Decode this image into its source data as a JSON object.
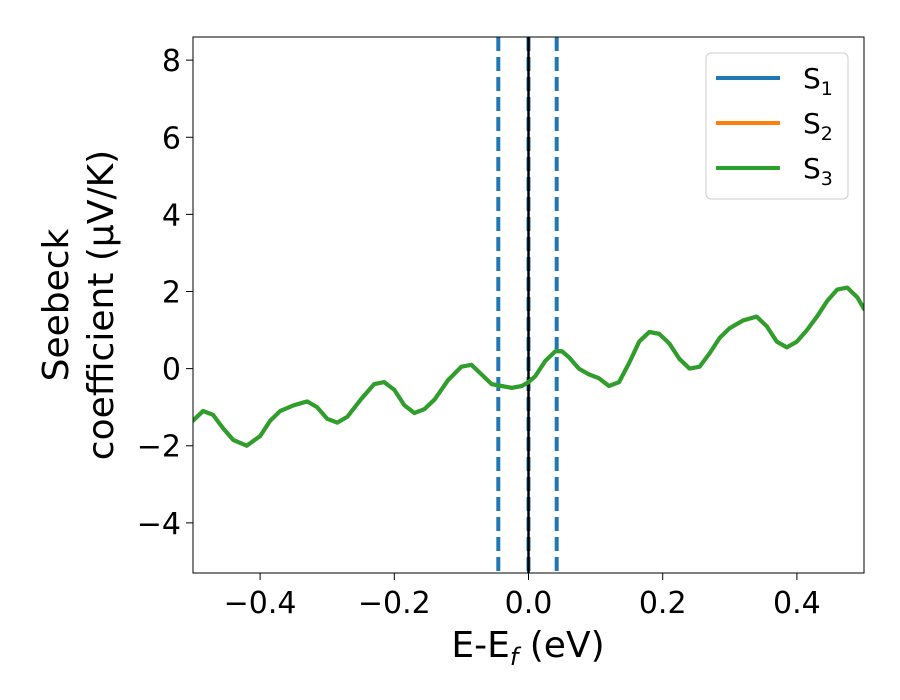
{
  "chart_data": {
    "type": "line",
    "xlabel": "E-E",
    "xlabel_sub": "f",
    "xlabel_unit": " (eV)",
    "ylabel_line1": "Seebeck",
    "ylabel_line2": "coefficient  (μV/K)",
    "xlim": [
      -0.5,
      0.5
    ],
    "ylim": [
      -5.3,
      8.6
    ],
    "xticks": [
      -0.4,
      -0.2,
      0.0,
      0.2,
      0.4
    ],
    "xtick_labels": [
      "−0.4",
      "−0.2",
      "0.0",
      "0.2",
      "0.4"
    ],
    "yticks": [
      -4,
      -2,
      0,
      2,
      4,
      6,
      8
    ],
    "ytick_labels": [
      "−4",
      "−2",
      "0",
      "2",
      "4",
      "6",
      "8"
    ],
    "grid": false,
    "legend_position": "top-right",
    "vlines": [
      {
        "x": -0.045,
        "style": "dashed",
        "color": "#1f77b4"
      },
      {
        "x": 0.0,
        "style": "dashed",
        "color": "#1f77b4"
      },
      {
        "x": 0.042,
        "style": "dashed",
        "color": "#1f77b4"
      },
      {
        "x": 0.0,
        "style": "solid",
        "color": "#000000"
      }
    ],
    "series": [
      {
        "name": "S",
        "name_sub": "1",
        "color": "#1f77b4",
        "x": [
          -0.5,
          -0.485,
          -0.47,
          -0.455,
          -0.44,
          -0.42,
          -0.4,
          -0.385,
          -0.37,
          -0.35,
          -0.33,
          -0.315,
          -0.3,
          -0.285,
          -0.27,
          -0.25,
          -0.23,
          -0.215,
          -0.2,
          -0.185,
          -0.17,
          -0.155,
          -0.14,
          -0.12,
          -0.1,
          -0.085,
          -0.07,
          -0.055,
          -0.04,
          -0.025,
          -0.01,
          0.0,
          0.01,
          0.025,
          0.04,
          0.05,
          0.06,
          0.075,
          0.09,
          0.105,
          0.12,
          0.135,
          0.15,
          0.165,
          0.18,
          0.195,
          0.21,
          0.225,
          0.24,
          0.255,
          0.27,
          0.285,
          0.3,
          0.32,
          0.34,
          0.355,
          0.37,
          0.385,
          0.4,
          0.415,
          0.43,
          0.445,
          0.46,
          0.475,
          0.49,
          0.5
        ],
        "y": [
          -1.35,
          -1.1,
          -1.2,
          -1.55,
          -1.85,
          -2.0,
          -1.75,
          -1.35,
          -1.1,
          -0.95,
          -0.85,
          -1.0,
          -1.3,
          -1.4,
          -1.25,
          -0.8,
          -0.4,
          -0.35,
          -0.55,
          -0.95,
          -1.15,
          -1.05,
          -0.8,
          -0.3,
          0.05,
          0.1,
          -0.15,
          -0.4,
          -0.45,
          -0.5,
          -0.45,
          -0.35,
          -0.2,
          0.2,
          0.45,
          0.45,
          0.3,
          0.0,
          -0.15,
          -0.25,
          -0.45,
          -0.35,
          0.15,
          0.7,
          0.95,
          0.9,
          0.65,
          0.25,
          0.0,
          0.05,
          0.4,
          0.8,
          1.05,
          1.25,
          1.35,
          1.1,
          0.7,
          0.55,
          0.7,
          1.0,
          1.35,
          1.75,
          2.05,
          2.1,
          1.85,
          1.55
        ]
      },
      {
        "name": "S",
        "name_sub": "2",
        "color": "#ff7f0e",
        "x": [
          -0.5,
          -0.485,
          -0.47,
          -0.455,
          -0.44,
          -0.42,
          -0.4,
          -0.385,
          -0.37,
          -0.35,
          -0.33,
          -0.315,
          -0.3,
          -0.285,
          -0.27,
          -0.25,
          -0.23,
          -0.215,
          -0.2,
          -0.185,
          -0.17,
          -0.155,
          -0.14,
          -0.12,
          -0.1,
          -0.085,
          -0.07,
          -0.055,
          -0.04,
          -0.025,
          -0.01,
          0.0,
          0.01,
          0.025,
          0.04,
          0.05,
          0.06,
          0.075,
          0.09,
          0.105,
          0.12,
          0.135,
          0.15,
          0.165,
          0.18,
          0.195,
          0.21,
          0.225,
          0.24,
          0.255,
          0.27,
          0.285,
          0.3,
          0.32,
          0.34,
          0.355,
          0.37,
          0.385,
          0.4,
          0.415,
          0.43,
          0.445,
          0.46,
          0.475,
          0.49,
          0.5
        ],
        "y": [
          -1.35,
          -1.1,
          -1.2,
          -1.55,
          -1.85,
          -2.0,
          -1.75,
          -1.35,
          -1.1,
          -0.95,
          -0.85,
          -1.0,
          -1.3,
          -1.4,
          -1.25,
          -0.8,
          -0.4,
          -0.35,
          -0.55,
          -0.95,
          -1.15,
          -1.05,
          -0.8,
          -0.3,
          0.05,
          0.1,
          -0.15,
          -0.4,
          -0.45,
          -0.5,
          -0.45,
          -0.35,
          -0.2,
          0.2,
          0.45,
          0.45,
          0.3,
          0.0,
          -0.15,
          -0.25,
          -0.45,
          -0.35,
          0.15,
          0.7,
          0.95,
          0.9,
          0.65,
          0.25,
          0.0,
          0.05,
          0.4,
          0.8,
          1.05,
          1.25,
          1.35,
          1.1,
          0.7,
          0.55,
          0.7,
          1.0,
          1.35,
          1.75,
          2.05,
          2.1,
          1.85,
          1.55
        ]
      },
      {
        "name": "S",
        "name_sub": "3",
        "color": "#2ca02c",
        "x": [
          -0.5,
          -0.485,
          -0.47,
          -0.455,
          -0.44,
          -0.42,
          -0.4,
          -0.385,
          -0.37,
          -0.35,
          -0.33,
          -0.315,
          -0.3,
          -0.285,
          -0.27,
          -0.25,
          -0.23,
          -0.215,
          -0.2,
          -0.185,
          -0.17,
          -0.155,
          -0.14,
          -0.12,
          -0.1,
          -0.085,
          -0.07,
          -0.055,
          -0.04,
          -0.025,
          -0.01,
          0.0,
          0.01,
          0.025,
          0.04,
          0.05,
          0.06,
          0.075,
          0.09,
          0.105,
          0.12,
          0.135,
          0.15,
          0.165,
          0.18,
          0.195,
          0.21,
          0.225,
          0.24,
          0.255,
          0.27,
          0.285,
          0.3,
          0.32,
          0.34,
          0.355,
          0.37,
          0.385,
          0.4,
          0.415,
          0.43,
          0.445,
          0.46,
          0.475,
          0.49,
          0.5
        ],
        "y": [
          -1.35,
          -1.1,
          -1.2,
          -1.55,
          -1.85,
          -2.0,
          -1.75,
          -1.35,
          -1.1,
          -0.95,
          -0.85,
          -1.0,
          -1.3,
          -1.4,
          -1.25,
          -0.8,
          -0.4,
          -0.35,
          -0.55,
          -0.95,
          -1.15,
          -1.05,
          -0.8,
          -0.3,
          0.05,
          0.1,
          -0.15,
          -0.4,
          -0.45,
          -0.5,
          -0.45,
          -0.35,
          -0.2,
          0.2,
          0.45,
          0.45,
          0.3,
          0.0,
          -0.15,
          -0.25,
          -0.45,
          -0.35,
          0.15,
          0.7,
          0.95,
          0.9,
          0.65,
          0.25,
          0.0,
          0.05,
          0.4,
          0.8,
          1.05,
          1.25,
          1.35,
          1.1,
          0.7,
          0.55,
          0.7,
          1.0,
          1.35,
          1.75,
          2.05,
          2.1,
          1.85,
          1.55
        ]
      }
    ]
  }
}
